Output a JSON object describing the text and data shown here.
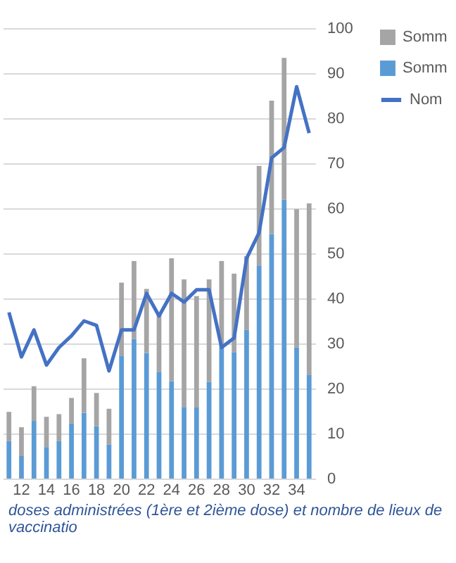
{
  "chart_data": {
    "type": "bar",
    "categories": [
      null,
      "12",
      null,
      "14",
      null,
      "16",
      null,
      "18",
      null,
      "20",
      null,
      "22",
      null,
      "24",
      null,
      "26",
      null,
      "28",
      null,
      "30",
      null,
      "32",
      null,
      "34",
      null
    ],
    "series": [
      {
        "name": "Somm",
        "color": "#5b9bd5",
        "values": [
          8.3,
          5.0,
          12.8,
          7.0,
          8.3,
          12.2,
          14.6,
          11.6,
          7.6,
          27.3,
          31.0,
          27.9,
          23.7,
          21.6,
          15.9,
          15.8,
          21.5,
          29.1,
          28.1,
          33.0,
          47.3,
          54.3,
          61.9,
          29.1,
          23.1
        ]
      },
      {
        "name": "Somm",
        "color": "#a5a5a5",
        "values": [
          6.5,
          6.4,
          7.7,
          6.7,
          6.0,
          5.7,
          12.1,
          7.4,
          7.9,
          16.2,
          17.3,
          14.2,
          12.7,
          27.3,
          28.3,
          24.7,
          22.7,
          19.2,
          17.4,
          16.4,
          22.1,
          29.6,
          31.5,
          30.7,
          38.0
        ]
      },
      {
        "name": "Nom",
        "type": "line",
        "color": "#4472c4",
        "values": [
          36.9,
          27.0,
          33.0,
          25.2,
          29.1,
          31.7,
          35.0,
          34.0,
          23.9,
          33.0,
          33.0,
          41.1,
          36.1,
          41.1,
          39.2,
          41.9,
          41.9,
          29.1,
          31.2,
          48.9,
          54.6,
          71.2,
          73.5,
          87.0,
          76.7
        ]
      }
    ],
    "stacked": true,
    "ylim": [
      0,
      100
    ],
    "yticks": [
      0,
      10,
      20,
      30,
      40,
      50,
      60,
      70,
      80,
      90,
      100
    ],
    "grid": "y",
    "legend": "right",
    "annotations": [
      "doses administrées (1ère et 2ième dose) et nombre de lieux de vaccinatio"
    ]
  }
}
